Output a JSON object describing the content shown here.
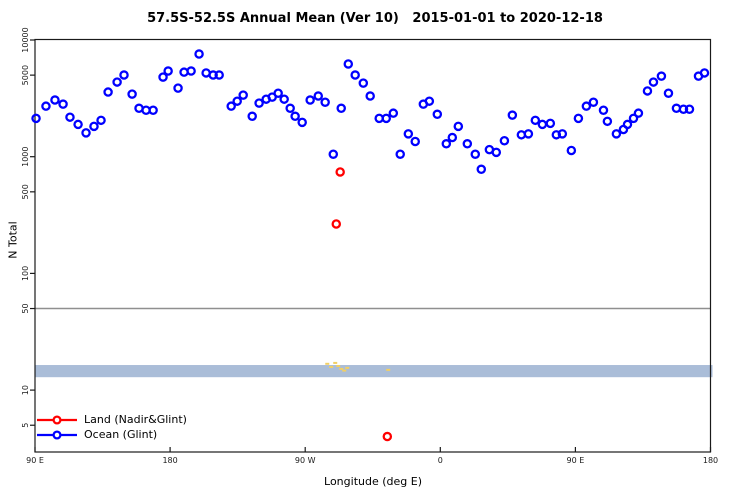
{
  "title": "57.5S-52.5S Annual Mean (Ver 10)   2015-01-01 to 2020-12-18",
  "axes": {
    "x": {
      "label": "Longitude (deg E)"
    },
    "y": {
      "label": "N Total"
    }
  },
  "legend": {
    "items": [
      {
        "label": "Land (Nadir&Glint)",
        "color": "#ff0000"
      },
      {
        "label": "Ocean (Glint)",
        "color": "#0000ff"
      }
    ]
  },
  "colors": {
    "ocean_point": "#0000ff",
    "land_point": "#ff0000",
    "band": "#aabdd8",
    "speck": "#f2cf63",
    "reference_line": "#8f8f8f",
    "axis": "#1a1a1a"
  },
  "chart_data": {
    "type": "scatter",
    "title": "57.5S-52.5S Annual Mean (Ver 10)   2015-01-01 to 2020-12-18",
    "xlabel": "Longitude (deg E)",
    "ylabel": "N Total",
    "x_axis": {
      "unit": "degrees eastward from left edge (90 E)",
      "range": [
        0,
        450
      ],
      "tick_positions": [
        0,
        90,
        180,
        270,
        360,
        450
      ],
      "tick_labels": [
        "90 E",
        "180",
        "90 W",
        "0",
        "90 E",
        "180"
      ]
    },
    "y_axis": {
      "scale": "log10",
      "ticks": [
        10000,
        5000,
        1000,
        500,
        100,
        50,
        10,
        5
      ],
      "tick_labels": [
        "10000",
        "5000",
        "1000",
        "500",
        "100",
        "50",
        "10",
        "5"
      ],
      "top_value": 10000
    },
    "grid": false,
    "legend_position": "bottom-left inside plot",
    "series": [
      {
        "name": "Ocean (Glint)",
        "marker": "open-circle",
        "color": "#0000ff",
        "points": [
          [
            0.7,
            2130
          ],
          [
            7.3,
            2710
          ],
          [
            13.3,
            3060
          ],
          [
            18.7,
            2820
          ],
          [
            23.3,
            2180
          ],
          [
            28.7,
            1890
          ],
          [
            34,
            1600
          ],
          [
            39.3,
            1820
          ],
          [
            44,
            2050
          ],
          [
            48.7,
            3580
          ],
          [
            54.7,
            4360
          ],
          [
            59.3,
            5010
          ],
          [
            64.7,
            3440
          ],
          [
            69.3,
            2600
          ],
          [
            74,
            2500
          ],
          [
            78.7,
            2500
          ],
          [
            85.3,
            4810
          ],
          [
            88.7,
            5420
          ],
          [
            95.3,
            3870
          ],
          [
            99.3,
            5300
          ],
          [
            104,
            5420
          ],
          [
            109.3,
            7580
          ],
          [
            114,
            5220
          ],
          [
            118.7,
            5010
          ],
          [
            122.7,
            5010
          ],
          [
            130.7,
            2710
          ],
          [
            134.7,
            2990
          ],
          [
            138.7,
            3370
          ],
          [
            144.7,
            2220
          ],
          [
            149.3,
            2880
          ],
          [
            154,
            3110
          ],
          [
            158,
            3240
          ],
          [
            162,
            3500
          ],
          [
            166,
            3110
          ],
          [
            170,
            2600
          ],
          [
            173.3,
            2220
          ],
          [
            178,
            1970
          ],
          [
            183.3,
            3060
          ],
          [
            188.7,
            3310
          ],
          [
            193.3,
            2930
          ],
          [
            198.7,
            1050
          ],
          [
            204,
            2600
          ],
          [
            208.7,
            6230
          ],
          [
            213.3,
            5010
          ],
          [
            218.7,
            4270
          ],
          [
            223.3,
            3310
          ],
          [
            229.3,
            2130
          ],
          [
            234,
            2130
          ],
          [
            238.7,
            2360
          ],
          [
            243.3,
            1050
          ],
          [
            248.7,
            1570
          ],
          [
            253.3,
            1350
          ],
          [
            258.7,
            2820
          ],
          [
            262.7,
            2990
          ],
          [
            268,
            2310
          ],
          [
            274,
            1290
          ],
          [
            278,
            1460
          ],
          [
            282,
            1820
          ],
          [
            288,
            1290
          ],
          [
            293.3,
            1050
          ],
          [
            297.3,
            780
          ],
          [
            302.7,
            1150
          ],
          [
            307.3,
            1090
          ],
          [
            312.7,
            1370
          ],
          [
            318,
            2270
          ],
          [
            324,
            1540
          ],
          [
            328.7,
            1570
          ],
          [
            333.3,
            2050
          ],
          [
            338,
            1890
          ],
          [
            343.3,
            1930
          ],
          [
            347.3,
            1540
          ],
          [
            351.3,
            1570
          ],
          [
            357.3,
            1130
          ],
          [
            362,
            2130
          ],
          [
            367.3,
            2710
          ],
          [
            372,
            2930
          ],
          [
            378.7,
            2500
          ],
          [
            381.3,
            2010
          ],
          [
            387.3,
            1570
          ],
          [
            392,
            1710
          ],
          [
            394.7,
            1890
          ],
          [
            398.7,
            2130
          ],
          [
            402,
            2360
          ],
          [
            408,
            3660
          ],
          [
            412,
            4360
          ],
          [
            417.3,
            4900
          ],
          [
            422,
            3500
          ],
          [
            427.3,
            2600
          ],
          [
            432,
            2550
          ],
          [
            436,
            2550
          ],
          [
            442,
            4900
          ],
          [
            446,
            5220
          ]
        ]
      },
      {
        "name": "Land (Nadir&Glint)",
        "marker": "open-circle",
        "color": "#ff0000",
        "points": [
          [
            200.7,
            265
          ],
          [
            203.3,
            740
          ],
          [
            234.7,
            4
          ]
        ]
      },
      {
        "name": "land-low-count-specks",
        "marker": "dash",
        "color": "#f2cf63",
        "points": [
          [
            194.7,
            16.8
          ],
          [
            197.3,
            15.8
          ],
          [
            200,
            17.1
          ],
          [
            202,
            16.1
          ],
          [
            204,
            15.2
          ],
          [
            206,
            14.7
          ],
          [
            208,
            15.5
          ],
          [
            235.3,
            14.9
          ]
        ]
      }
    ],
    "reference_lines": [
      {
        "name": "threshold-50",
        "value": 50,
        "color": "#8f8f8f"
      }
    ],
    "band": {
      "name": "low-count-band",
      "n_min": 12.9,
      "n_max": 16.4,
      "color": "#aabdd8"
    }
  }
}
